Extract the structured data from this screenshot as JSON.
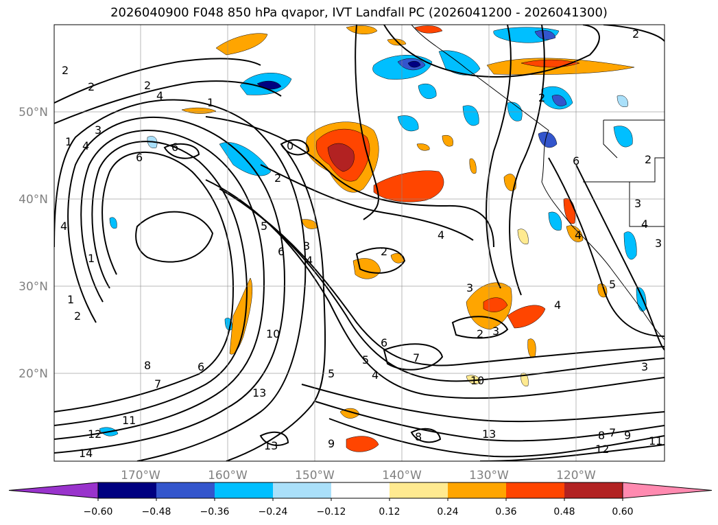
{
  "title": "2026040900 F048 850 hPa qvapor, IVT Landfall PC (2026041200 - 2026041300)",
  "axes": {
    "lat_labels": [
      "50°N",
      "40°N",
      "30°N",
      "20°N"
    ],
    "lon_labels": [
      "170°W",
      "160°W",
      "150°W",
      "140°W",
      "130°W",
      "120°W"
    ]
  },
  "colorbar": {
    "colors": [
      "#9933cc",
      "#000080",
      "#3355cc",
      "#00bfff",
      "#aae0fa",
      "#ffffff",
      "#ffea90",
      "#ffa500",
      "#ff4500",
      "#b22222",
      "#ff8ab0"
    ],
    "tick_labels": [
      "−0.60",
      "−0.48",
      "−0.36",
      "−0.24",
      "−0.12",
      "0.12",
      "0.24",
      "0.36",
      "0.48",
      "0.60"
    ]
  },
  "contour_labels": [
    "2",
    "2",
    "4",
    "2",
    "1",
    "3",
    "1",
    "4",
    "6",
    "6",
    "2",
    "0",
    "2",
    "4",
    "3",
    "6",
    "4",
    "2",
    "4",
    "3",
    "2",
    "3",
    "4",
    "5",
    "6",
    "8",
    "7",
    "10",
    "5",
    "4",
    "6",
    "5",
    "7",
    "10",
    "13",
    "9",
    "13",
    "8",
    "11",
    "12",
    "14",
    "13",
    "12",
    "8",
    "7",
    "9",
    "11",
    "6",
    "3",
    "3",
    "4",
    "2",
    "2",
    "2",
    "3",
    "4",
    "5",
    "1",
    "1"
  ]
}
